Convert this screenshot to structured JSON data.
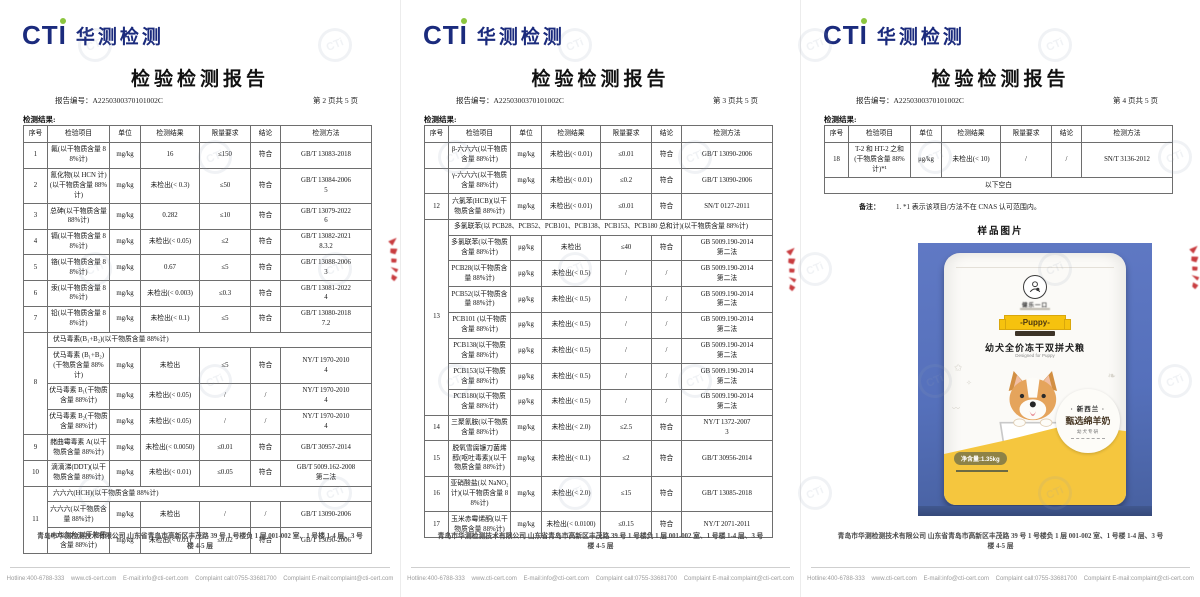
{
  "report": {
    "logo_text": "CTI",
    "logo_cn": "华测检测",
    "title": "检验检测报告",
    "report_no_label": "报告编号：",
    "report_no": "A2250300370101002C",
    "results_label": "检测结果:",
    "footer_company": "青岛市华测检测技术有限公司 山东省青岛市高新区丰茂路 39 号 1 号楼负 1 层 001-002 室、1 号楼 1-4 层、3 号楼 4-5 层",
    "footer_contacts": "Hotline:400-6788-333    www.cti-cert.com    E-mail:info@cti-cert.com    Complaint call:0755-33681700    Complaint E-mail:complaint@cti-cert.com"
  },
  "columns": [
    "序号",
    "检验项目",
    "单位",
    "检测结果",
    "限量要求",
    "结论",
    "检测方法"
  ],
  "pages": [
    {
      "page_label": "第 2 页共 5 页",
      "rows": [
        [
          {
            "t": "1"
          },
          {
            "t": "氟(以干物质含量 88%计)"
          },
          {
            "t": "mg/kg"
          },
          {
            "t": "16"
          },
          {
            "t": "≤150"
          },
          {
            "t": "符合"
          },
          {
            "t": "GB/T 13083-2018"
          }
        ],
        [
          {
            "t": "2"
          },
          {
            "t": "氰化物(以 HCN 计)(以干物质含量 88%计)"
          },
          {
            "t": "mg/kg"
          },
          {
            "t": "未检出(< 0.3)"
          },
          {
            "t": "≤50"
          },
          {
            "t": "符合"
          },
          {
            "t": "GB/T 13084-2006\n5"
          }
        ],
        [
          {
            "t": "3"
          },
          {
            "t": "总砷(以干物质含量 88%计)"
          },
          {
            "t": "mg/kg"
          },
          {
            "t": "0.282"
          },
          {
            "t": "≤10"
          },
          {
            "t": "符合"
          },
          {
            "t": "GB/T 13079-2022\n6"
          }
        ],
        [
          {
            "t": "4"
          },
          {
            "t": "镉(以干物质含量 88%计)"
          },
          {
            "t": "mg/kg"
          },
          {
            "t": "未检出(< 0.05)"
          },
          {
            "t": "≤2"
          },
          {
            "t": "符合"
          },
          {
            "t": "GB/T 13082-2021\n8.3.2"
          }
        ],
        [
          {
            "t": "5"
          },
          {
            "t": "铬(以干物质含量 88%计)"
          },
          {
            "t": "mg/kg"
          },
          {
            "t": "0.67"
          },
          {
            "t": "≤5"
          },
          {
            "t": "符合"
          },
          {
            "t": "GB/T 13088-2006\n3"
          }
        ],
        [
          {
            "t": "6"
          },
          {
            "t": "汞(以干物质含量 88%计)"
          },
          {
            "t": "mg/kg"
          },
          {
            "t": "未检出(< 0.003)"
          },
          {
            "t": "≤0.3"
          },
          {
            "t": "符合"
          },
          {
            "t": "GB/T 13081-2022\n4"
          }
        ],
        [
          {
            "t": "7"
          },
          {
            "t": "铅(以干物质含量 88%计)"
          },
          {
            "t": "mg/kg"
          },
          {
            "t": "未检出(< 0.1)"
          },
          {
            "t": "≤5"
          },
          {
            "t": "符合"
          },
          {
            "t": "GB/T 13080-2018\n7.2"
          }
        ],
        [
          {
            "t": "8",
            "rs": 4
          },
          {
            "t": "伏马毒素(B₁+B₂)(以干物质含量 88%计)",
            "cs": 6,
            "al": "left"
          }
        ],
        [
          {
            "t": "伏马毒素 (B₁+B₂)(干物质含量 88%计)"
          },
          {
            "t": "mg/kg"
          },
          {
            "t": "未检出"
          },
          {
            "t": "≤5"
          },
          {
            "t": "符合"
          },
          {
            "t": "NY/T 1970-2010\n4"
          }
        ],
        [
          {
            "t": "伏马毒素 B₁(干物质含量 88%计)"
          },
          {
            "t": "mg/kg"
          },
          {
            "t": "未检出(< 0.05)"
          },
          {
            "t": "/"
          },
          {
            "t": "/"
          },
          {
            "t": "NY/T 1970-2010\n4"
          }
        ],
        [
          {
            "t": "伏马毒素 B₂(干物质含量 88%计)"
          },
          {
            "t": "mg/kg"
          },
          {
            "t": "未检出(< 0.05)"
          },
          {
            "t": "/"
          },
          {
            "t": "/"
          },
          {
            "t": "NY/T 1970-2010\n4"
          }
        ],
        [
          {
            "t": "9"
          },
          {
            "t": "赭曲霉毒素 A(以干物质含量 88%计)"
          },
          {
            "t": "mg/kg"
          },
          {
            "t": "未检出(< 0.0050)"
          },
          {
            "t": "≤0.01"
          },
          {
            "t": "符合"
          },
          {
            "t": "GB/T 30957-2014"
          }
        ],
        [
          {
            "t": "10"
          },
          {
            "t": "滴滴涕(DDT)(以干物质含量 88%计)"
          },
          {
            "t": "mg/kg"
          },
          {
            "t": "未检出(< 0.01)"
          },
          {
            "t": "≤0.05"
          },
          {
            "t": "符合"
          },
          {
            "t": "GB/T 5009.162-2008\n第二法"
          }
        ],
        [
          {
            "t": "11",
            "rs": 3
          },
          {
            "t": "六六六(HCH)(以干物质含量 88%计)",
            "cs": 6,
            "al": "left"
          }
        ],
        [
          {
            "t": "六六六(以干物质含量 88%计)"
          },
          {
            "t": "mg/kg"
          },
          {
            "t": "未检出"
          },
          {
            "t": "/"
          },
          {
            "t": "/"
          },
          {
            "t": "GB/T 13090-2006"
          }
        ],
        [
          {
            "t": "α-六六六(以干物质含量 88%计)"
          },
          {
            "t": "mg/kg"
          },
          {
            "t": "未检出(< 0.01)"
          },
          {
            "t": "≤0.02"
          },
          {
            "t": "符合"
          },
          {
            "t": "GB/T 13090-2006"
          }
        ]
      ]
    },
    {
      "page_label": "第 3 页共 5 页",
      "rows": [
        [
          {
            "t": ""
          },
          {
            "t": "β-六六六(以干物质含量 88%计)"
          },
          {
            "t": "mg/kg"
          },
          {
            "t": "未检出(< 0.01)"
          },
          {
            "t": "≤0.01"
          },
          {
            "t": "符合"
          },
          {
            "t": "GB/T 13090-2006"
          }
        ],
        [
          {
            "t": ""
          },
          {
            "t": "γ-六六六(以干物质含量 88%计)"
          },
          {
            "t": "mg/kg"
          },
          {
            "t": "未检出(< 0.01)"
          },
          {
            "t": "≤0.2"
          },
          {
            "t": "符合"
          },
          {
            "t": "GB/T 13090-2006"
          }
        ],
        [
          {
            "t": "12"
          },
          {
            "t": "六氯苯(HCB)(以干物质含量 88%计)"
          },
          {
            "t": "mg/kg"
          },
          {
            "t": "未检出(< 0.01)"
          },
          {
            "t": "≤0.01"
          },
          {
            "t": "符合"
          },
          {
            "t": "SN/T 0127-2011"
          }
        ],
        [
          {
            "t": "13",
            "rs": 8
          },
          {
            "t": "多氯联苯(以 PCB28、PCB52、PCB101、PCB138、PCB153、PCB180 总和计)(以干物质含量 88%计)",
            "cs": 6,
            "al": "left"
          }
        ],
        [
          {
            "t": "多氯联苯(以干物质含量 88%计)"
          },
          {
            "t": "μg/kg"
          },
          {
            "t": "未检出"
          },
          {
            "t": "≤40"
          },
          {
            "t": "符合"
          },
          {
            "t": "GB 5009.190-2014\n第二法"
          }
        ],
        [
          {
            "t": "PCB28(以干物质含量 88%计)"
          },
          {
            "t": "μg/kg"
          },
          {
            "t": "未检出(< 0.5)"
          },
          {
            "t": "/"
          },
          {
            "t": "/"
          },
          {
            "t": "GB 5009.190-2014\n第二法"
          }
        ],
        [
          {
            "t": "PCB52(以干物质含量 88%计)"
          },
          {
            "t": "μg/kg"
          },
          {
            "t": "未检出(< 0.5)"
          },
          {
            "t": "/"
          },
          {
            "t": "/"
          },
          {
            "t": "GB 5009.190-2014\n第二法"
          }
        ],
        [
          {
            "t": "PCB101 (以干物质含量 88%计)"
          },
          {
            "t": "μg/kg"
          },
          {
            "t": "未检出(< 0.5)"
          },
          {
            "t": "/"
          },
          {
            "t": "/"
          },
          {
            "t": "GB 5009.190-2014\n第二法"
          }
        ],
        [
          {
            "t": "PCB138(以干物质含量 88%计)"
          },
          {
            "t": "μg/kg"
          },
          {
            "t": "未检出(< 0.5)"
          },
          {
            "t": "/"
          },
          {
            "t": "/"
          },
          {
            "t": "GB 5009.190-2014\n第二法"
          }
        ],
        [
          {
            "t": "PCB153(以干物质含量 88%计)"
          },
          {
            "t": "μg/kg"
          },
          {
            "t": "未检出(< 0.5)"
          },
          {
            "t": "/"
          },
          {
            "t": "/"
          },
          {
            "t": "GB 5009.190-2014\n第二法"
          }
        ],
        [
          {
            "t": "PCB180(以干物质含量 88%计)"
          },
          {
            "t": "μg/kg"
          },
          {
            "t": "未检出(< 0.5)"
          },
          {
            "t": "/"
          },
          {
            "t": "/"
          },
          {
            "t": "GB 5009.190-2014\n第二法"
          }
        ],
        [
          {
            "t": "14"
          },
          {
            "t": "三聚氰胺(以干物质含量 88%计)"
          },
          {
            "t": "mg/kg"
          },
          {
            "t": "未检出(< 2.0)"
          },
          {
            "t": "≤2.5"
          },
          {
            "t": "符合"
          },
          {
            "t": "NY/T 1372-2007\n3"
          }
        ],
        [
          {
            "t": "15"
          },
          {
            "t": "脱氧雪腐镰刀菌烯醇(呕吐毒素)(以干物质含量 88%计)"
          },
          {
            "t": "mg/kg"
          },
          {
            "t": "未检出(< 0.1)"
          },
          {
            "t": "≤2"
          },
          {
            "t": "符合"
          },
          {
            "t": "GB/T 30956-2014"
          }
        ],
        [
          {
            "t": "16"
          },
          {
            "t": "亚硝酸盐(以 NaNO₂计)(以干物质含量 88%计)"
          },
          {
            "t": "mg/kg"
          },
          {
            "t": "未检出(< 2.0)"
          },
          {
            "t": "≤15"
          },
          {
            "t": "符合"
          },
          {
            "t": "GB/T 13085-2018"
          }
        ],
        [
          {
            "t": "17"
          },
          {
            "t": "玉米赤霉烯酮(以干物质含量 88%计)"
          },
          {
            "t": "mg/kg"
          },
          {
            "t": "未检出(< 0.0100)"
          },
          {
            "t": "≤0.15"
          },
          {
            "t": "符合"
          },
          {
            "t": "NY/T 2071-2011"
          }
        ]
      ]
    },
    {
      "page_label": "第 4 页共 5 页",
      "rows": [
        [
          {
            "t": "18"
          },
          {
            "t": "T-2 和 HT-2 之和 (干物质含量 88%计)*¹"
          },
          {
            "t": "μg/kg"
          },
          {
            "t": "未检出(< 10)"
          },
          {
            "t": "/"
          },
          {
            "t": "/"
          },
          {
            "t": "SN/T 3136-2012"
          }
        ],
        [
          {
            "t": "以下空白",
            "cs": 7
          }
        ]
      ],
      "notes_label": "备注：",
      "note": "1. *1 表示该项目/方法不在 CNAS 认可范围内。",
      "sample_title": "样品图片"
    }
  ],
  "sample_bag": {
    "brand": "健乐一口",
    "puppy_label": "-Puppy-",
    "product_name": "幼犬全价冻干双拼犬粮",
    "product_sub": "Designed for Puppy",
    "badge_line1": "新西兰",
    "badge_line2": "甄选绵羊奶",
    "badge_line3": "幼犬专研",
    "net_weight": "净含量:1.35kg"
  },
  "colors": {
    "brand_navy": "#1b2b7d",
    "brand_green": "#8cc63f",
    "seal_red": "#c3272b",
    "photo_blue": "#5570bb",
    "bag_yellow": "#f5c63e"
  }
}
